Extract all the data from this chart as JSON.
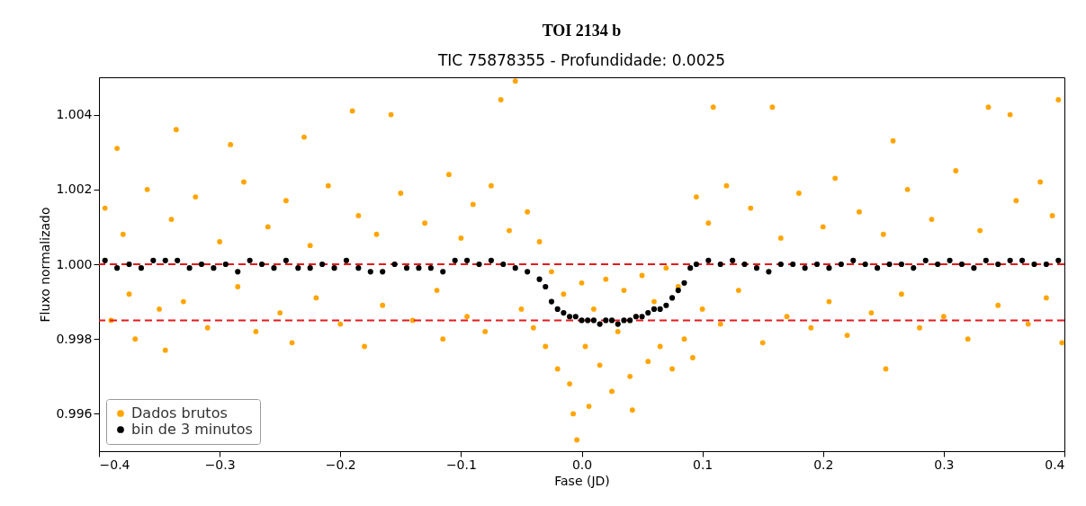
{
  "chart_data": {
    "type": "scatter",
    "title": "TOI 2134 b",
    "subtitle": "TIC 75878355 - Profundidade: 0.0025",
    "xlabel": "Fase (JD)",
    "ylabel": "Fluxo normalizado",
    "xlim": [
      -0.4,
      0.4
    ],
    "xticks": [
      {
        "value": -0.4,
        "label": "−0.4"
      },
      {
        "value": -0.3,
        "label": "−0.3"
      },
      {
        "value": -0.2,
        "label": "−0.2"
      },
      {
        "value": -0.1,
        "label": "−0.1"
      },
      {
        "value": 0,
        "label": "0.0"
      },
      0.1,
      0.2,
      0.3,
      0.4
    ],
    "ylim": [
      0.995,
      1.005
    ],
    "yticks": [
      0.996,
      0.998,
      {
        "value": 1,
        "label": "1.000"
      },
      1.002,
      1.004
    ],
    "grid": false,
    "legend": "bottom left",
    "marker": "circle",
    "series": [
      {
        "name": "Dados brutos",
        "color": "#ffa500",
        "x": [
          -0.395,
          -0.39,
          -0.385,
          -0.38,
          -0.375,
          -0.37,
          -0.36,
          -0.35,
          -0.345,
          -0.34,
          -0.336,
          -0.33,
          -0.32,
          -0.31,
          -0.3,
          -0.291,
          -0.285,
          -0.28,
          -0.27,
          -0.26,
          -0.25,
          -0.245,
          -0.24,
          -0.23,
          -0.225,
          -0.22,
          -0.21,
          -0.2,
          -0.19,
          -0.185,
          -0.18,
          -0.17,
          -0.165,
          -0.158,
          -0.15,
          -0.14,
          -0.13,
          -0.12,
          -0.115,
          -0.11,
          -0.1,
          -0.095,
          -0.09,
          -0.08,
          -0.075,
          -0.067,
          -0.06,
          -0.055,
          -0.05,
          -0.045,
          -0.04,
          -0.035,
          -0.03,
          -0.025,
          -0.02,
          -0.015,
          -0.01,
          -0.007,
          -0.004,
          0,
          0.003,
          0.006,
          0.01,
          0.015,
          0.02,
          0.025,
          0.03,
          0.035,
          0.04,
          0.042,
          0.045,
          0.05,
          0.055,
          0.06,
          0.065,
          0.07,
          0.075,
          0.08,
          0.085,
          0.092,
          0.095,
          0.1,
          0.105,
          0.109,
          0.115,
          0.12,
          0.13,
          0.14,
          0.15,
          0.158,
          0.165,
          0.17,
          0.18,
          0.19,
          0.2,
          0.205,
          0.21,
          0.22,
          0.23,
          0.24,
          0.25,
          0.252,
          0.258,
          0.265,
          0.27,
          0.28,
          0.29,
          0.3,
          0.31,
          0.32,
          0.33,
          0.337,
          0.345,
          0.355,
          0.36,
          0.37,
          0.38,
          0.385,
          0.39,
          0.395,
          0.398
        ],
        "values": [
          1.0015,
          0.9985,
          1.0031,
          1.0008,
          0.9992,
          0.998,
          1.002,
          0.9988,
          0.9977,
          1.0012,
          1.0036,
          0.999,
          1.0018,
          0.9983,
          1.0006,
          1.0032,
          0.9994,
          1.0022,
          0.9982,
          1.001,
          0.9987,
          1.0017,
          0.9979,
          1.0034,
          1.0005,
          0.9991,
          1.0021,
          0.9984,
          1.0041,
          1.0013,
          0.9978,
          1.0008,
          0.9989,
          1.004,
          1.0019,
          0.9985,
          1.0011,
          0.9993,
          0.998,
          1.0024,
          1.0007,
          0.9986,
          1.0016,
          0.9982,
          1.0021,
          1.0044,
          1.0009,
          1.0049,
          0.9988,
          1.0014,
          0.9983,
          1.0006,
          0.9978,
          0.9998,
          0.9972,
          0.9992,
          0.9968,
          0.996,
          0.9953,
          0.9995,
          0.9978,
          0.9962,
          0.9988,
          0.9973,
          0.9996,
          0.9966,
          0.9982,
          0.9993,
          0.997,
          0.9961,
          0.9986,
          0.9997,
          0.9974,
          0.999,
          0.9978,
          0.9999,
          0.9972,
          0.9994,
          0.998,
          0.9975,
          1.0018,
          0.9988,
          1.0011,
          1.0042,
          0.9984,
          1.0021,
          0.9993,
          1.0015,
          0.9979,
          1.0042,
          1.0007,
          0.9986,
          1.0019,
          0.9983,
          1.001,
          0.999,
          1.0023,
          0.9981,
          1.0014,
          0.9987,
          1.0008,
          0.9972,
          1.0033,
          0.9992,
          1.002,
          0.9983,
          1.0012,
          0.9986,
          1.0025,
          0.998,
          1.0009,
          1.0042,
          0.9989,
          1.004,
          1.0017,
          0.9984,
          1.0022,
          0.9991,
          1.0013,
          1.0044,
          0.9979
        ]
      },
      {
        "name": "bin de 3 minutos",
        "color": "#000000",
        "x": [
          -0.395,
          -0.385,
          -0.375,
          -0.365,
          -0.355,
          -0.345,
          -0.335,
          -0.325,
          -0.315,
          -0.305,
          -0.295,
          -0.285,
          -0.275,
          -0.265,
          -0.255,
          -0.245,
          -0.235,
          -0.225,
          -0.215,
          -0.205,
          -0.195,
          -0.185,
          -0.175,
          -0.165,
          -0.155,
          -0.145,
          -0.135,
          -0.125,
          -0.115,
          -0.105,
          -0.095,
          -0.085,
          -0.075,
          -0.065,
          -0.055,
          -0.045,
          -0.035,
          -0.03,
          -0.025,
          -0.02,
          -0.015,
          -0.01,
          -0.005,
          0,
          0.005,
          0.01,
          0.015,
          0.02,
          0.025,
          0.03,
          0.035,
          0.04,
          0.045,
          0.05,
          0.055,
          0.06,
          0.065,
          0.07,
          0.075,
          0.08,
          0.085,
          0.09,
          0.095,
          0.105,
          0.115,
          0.125,
          0.135,
          0.145,
          0.155,
          0.165,
          0.175,
          0.185,
          0.195,
          0.205,
          0.215,
          0.225,
          0.235,
          0.245,
          0.255,
          0.265,
          0.275,
          0.285,
          0.295,
          0.305,
          0.315,
          0.325,
          0.335,
          0.345,
          0.355,
          0.365,
          0.375,
          0.385,
          0.395
        ],
        "values": [
          1.0001,
          0.9999,
          1.0,
          0.9999,
          1.0001,
          1.0001,
          1.0001,
          0.9999,
          1.0,
          0.9999,
          1.0,
          0.9998,
          1.0001,
          1.0,
          0.9999,
          1.0001,
          0.9999,
          0.9999,
          1.0,
          0.9999,
          1.0001,
          0.9999,
          0.9998,
          0.9998,
          1.0,
          0.9999,
          0.9999,
          0.9999,
          0.9998,
          1.0001,
          1.0001,
          1.0,
          1.0001,
          1.0,
          0.9999,
          0.9998,
          0.9996,
          0.9994,
          0.999,
          0.9988,
          0.9987,
          0.9986,
          0.9986,
          0.9985,
          0.9985,
          0.9985,
          0.9984,
          0.9985,
          0.9985,
          0.9984,
          0.9985,
          0.9985,
          0.9986,
          0.9986,
          0.9987,
          0.9988,
          0.9988,
          0.9989,
          0.9991,
          0.9993,
          0.9995,
          0.9999,
          1.0,
          1.0001,
          1.0,
          1.0001,
          1.0,
          0.9999,
          0.9998,
          1.0,
          1.0,
          0.9999,
          1.0,
          0.9999,
          1.0,
          1.0001,
          1.0,
          0.9999,
          1.0,
          1.0,
          0.9999,
          1.0001,
          1.0,
          1.0001,
          1.0,
          0.9999,
          1.0001,
          1.0,
          1.0001,
          1.0001,
          1.0,
          1.0,
          1.0001
        ]
      }
    ],
    "ref_lines": [
      {
        "axis": "y",
        "value": 1.0,
        "color": "#e31a1c",
        "line_style": "dashed"
      },
      {
        "axis": "y",
        "value": 0.9985,
        "color": "#e31a1c",
        "line_style": "dashed"
      }
    ]
  }
}
